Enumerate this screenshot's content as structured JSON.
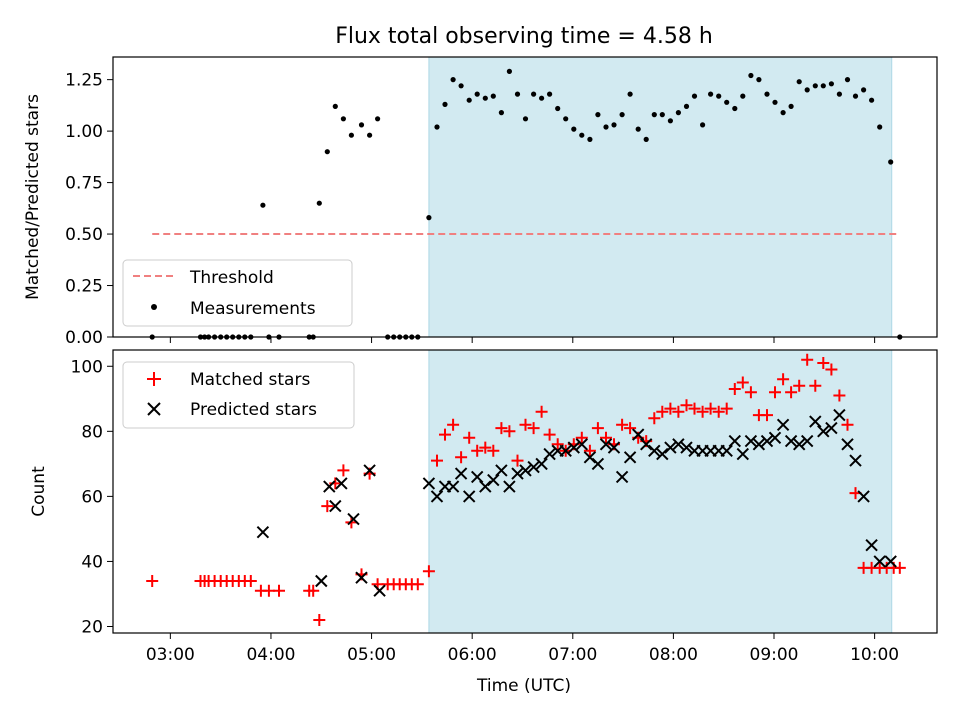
{
  "title": "Flux total observing time = 4.58 h",
  "colors": {
    "threshold": "#f08080",
    "shade": "#add8e6",
    "matched": "#ff0000",
    "predicted": "#000000",
    "measurement": "#000000"
  },
  "chart_data": [
    {
      "type": "scatter",
      "ylabel": "Matched/Predicted stars",
      "ylim": [
        0,
        1.36
      ],
      "xlim": [
        2.43,
        10.62
      ],
      "x_unit": "hours UTC",
      "yticks": [
        "0.00",
        "0.25",
        "0.50",
        "0.75",
        "1.00",
        "1.25"
      ],
      "shaded_interval": [
        5.57,
        10.17
      ],
      "threshold": {
        "name": "Threshold",
        "value": 0.5,
        "x_range": [
          2.82,
          10.25
        ]
      },
      "legend": {
        "position": "lower-left",
        "entries": [
          "Threshold",
          "Measurements"
        ]
      },
      "series": [
        {
          "name": "Measurements",
          "x": [
            2.82,
            3.3,
            3.34,
            3.38,
            3.44,
            3.5,
            3.56,
            3.62,
            3.68,
            3.74,
            3.8,
            3.92,
            3.98,
            4.08,
            4.38,
            4.42,
            4.48,
            4.56,
            4.64,
            4.72,
            4.8,
            4.9,
            4.98,
            5.06,
            5.16,
            5.22,
            5.28,
            5.34,
            5.4,
            5.46,
            5.57,
            5.65,
            5.73,
            5.81,
            5.89,
            5.97,
            6.05,
            6.13,
            6.21,
            6.29,
            6.37,
            6.45,
            6.53,
            6.61,
            6.69,
            6.77,
            6.85,
            6.93,
            7.01,
            7.09,
            7.17,
            7.25,
            7.33,
            7.41,
            7.49,
            7.57,
            7.65,
            7.73,
            7.81,
            7.89,
            7.97,
            8.05,
            8.13,
            8.21,
            8.29,
            8.37,
            8.45,
            8.53,
            8.61,
            8.69,
            8.77,
            8.85,
            8.93,
            9.01,
            9.09,
            9.17,
            9.25,
            9.33,
            9.41,
            9.49,
            9.57,
            9.65,
            9.73,
            9.81,
            9.89,
            9.97,
            10.05,
            10.16,
            10.25
          ],
          "y": [
            0.0,
            0.0,
            0.0,
            0.0,
            0.0,
            0.0,
            0.0,
            0.0,
            0.0,
            0.0,
            0.0,
            0.64,
            0.0,
            0.0,
            0.0,
            0.0,
            0.65,
            0.9,
            1.12,
            1.06,
            0.98,
            1.03,
            0.98,
            1.06,
            0.0,
            0.0,
            0.0,
            0.0,
            0.0,
            0.0,
            0.58,
            1.02,
            1.13,
            1.25,
            1.22,
            1.15,
            1.18,
            1.16,
            1.17,
            1.09,
            1.29,
            1.18,
            1.06,
            1.18,
            1.16,
            1.18,
            1.11,
            1.06,
            1.01,
            0.98,
            0.96,
            1.08,
            1.02,
            1.03,
            1.08,
            1.18,
            1.01,
            0.96,
            1.08,
            1.08,
            1.05,
            1.09,
            1.12,
            1.17,
            1.03,
            1.18,
            1.17,
            1.14,
            1.11,
            1.17,
            1.27,
            1.25,
            1.18,
            1.14,
            1.09,
            1.12,
            1.24,
            1.2,
            1.22,
            1.22,
            1.23,
            1.18,
            1.25,
            1.17,
            1.2,
            1.15,
            1.02,
            0.85,
            0.0
          ]
        }
      ]
    },
    {
      "type": "scatter",
      "xlabel": "Time (UTC)",
      "ylabel": "Count",
      "ylim": [
        18,
        105
      ],
      "xlim": [
        2.43,
        10.62
      ],
      "x_unit": "hours UTC",
      "xticks": [
        {
          "value": 3,
          "label": "03:00"
        },
        {
          "value": 4,
          "label": "04:00"
        },
        {
          "value": 5,
          "label": "05:00"
        },
        {
          "value": 6,
          "label": "06:00"
        },
        {
          "value": 7,
          "label": "07:00"
        },
        {
          "value": 8,
          "label": "08:00"
        },
        {
          "value": 9,
          "label": "09:00"
        },
        {
          "value": 10,
          "label": "10:00"
        }
      ],
      "yticks": [
        "20",
        "40",
        "60",
        "80",
        "100"
      ],
      "shaded_interval": [
        5.57,
        10.17
      ],
      "legend": {
        "position": "upper-left",
        "entries": [
          "Matched stars",
          "Predicted stars"
        ]
      },
      "series": [
        {
          "name": "Matched stars",
          "x": [
            2.82,
            3.3,
            3.34,
            3.38,
            3.44,
            3.5,
            3.56,
            3.62,
            3.68,
            3.74,
            3.8,
            3.9,
            3.98,
            4.08,
            4.38,
            4.42,
            4.48,
            4.56,
            4.64,
            4.72,
            4.8,
            4.9,
            4.98,
            5.06,
            5.16,
            5.22,
            5.28,
            5.34,
            5.4,
            5.46,
            5.57,
            5.65,
            5.73,
            5.81,
            5.89,
            5.97,
            6.05,
            6.13,
            6.21,
            6.29,
            6.37,
            6.45,
            6.53,
            6.61,
            6.69,
            6.77,
            6.85,
            6.93,
            7.01,
            7.09,
            7.17,
            7.25,
            7.33,
            7.41,
            7.49,
            7.57,
            7.65,
            7.73,
            7.81,
            7.89,
            7.97,
            8.05,
            8.13,
            8.21,
            8.29,
            8.37,
            8.45,
            8.53,
            8.61,
            8.69,
            8.77,
            8.85,
            8.93,
            9.01,
            9.09,
            9.17,
            9.25,
            9.33,
            9.41,
            9.49,
            9.57,
            9.65,
            9.73,
            9.81,
            9.89,
            9.97,
            10.05,
            10.12,
            10.19,
            10.25
          ],
          "y": [
            34,
            34,
            34,
            34,
            34,
            34,
            34,
            34,
            34,
            34,
            34,
            31,
            31,
            31,
            31,
            31,
            22,
            57,
            64,
            68,
            52,
            36,
            67,
            33,
            33,
            33,
            33,
            33,
            33,
            33,
            37,
            71,
            79,
            82,
            72,
            78,
            74,
            75,
            74,
            81,
            80,
            71,
            82,
            81,
            86,
            79,
            76,
            74,
            76,
            78,
            74,
            81,
            78,
            76,
            82,
            81,
            78,
            77,
            84,
            86,
            87,
            86,
            88,
            87,
            86,
            87,
            86,
            87,
            93,
            95,
            92,
            85,
            85,
            92,
            96,
            92,
            94,
            102,
            94,
            101,
            99,
            91,
            82,
            61,
            38,
            38,
            38,
            38,
            38,
            38
          ]
        },
        {
          "name": "Predicted stars",
          "x": [
            3.92,
            4.5,
            4.58,
            4.64,
            4.7,
            4.82,
            4.9,
            4.98,
            5.08,
            5.57,
            5.65,
            5.73,
            5.81,
            5.89,
            5.97,
            6.05,
            6.13,
            6.21,
            6.29,
            6.37,
            6.45,
            6.53,
            6.61,
            6.69,
            6.77,
            6.85,
            6.93,
            7.01,
            7.09,
            7.17,
            7.25,
            7.33,
            7.41,
            7.49,
            7.57,
            7.65,
            7.73,
            7.81,
            7.89,
            7.97,
            8.05,
            8.13,
            8.21,
            8.29,
            8.37,
            8.45,
            8.53,
            8.61,
            8.69,
            8.77,
            8.85,
            8.93,
            9.01,
            9.09,
            9.17,
            9.25,
            9.33,
            9.41,
            9.49,
            9.57,
            9.65,
            9.73,
            9.81,
            9.89,
            9.97,
            10.05,
            10.16
          ],
          "y": [
            49,
            34,
            63,
            57,
            64,
            53,
            35,
            68,
            31,
            64,
            60,
            63,
            63,
            67,
            60,
            66,
            63,
            65,
            68,
            63,
            67,
            68,
            69,
            70,
            73,
            74,
            74,
            75,
            76,
            72,
            70,
            76,
            75,
            66,
            72,
            79,
            76,
            74,
            73,
            75,
            76,
            75,
            74,
            74,
            74,
            74,
            74,
            77,
            73,
            77,
            76,
            77,
            78,
            82,
            77,
            76,
            77,
            83,
            80,
            81,
            85,
            76,
            71,
            60,
            45,
            40,
            40
          ]
        }
      ]
    }
  ]
}
